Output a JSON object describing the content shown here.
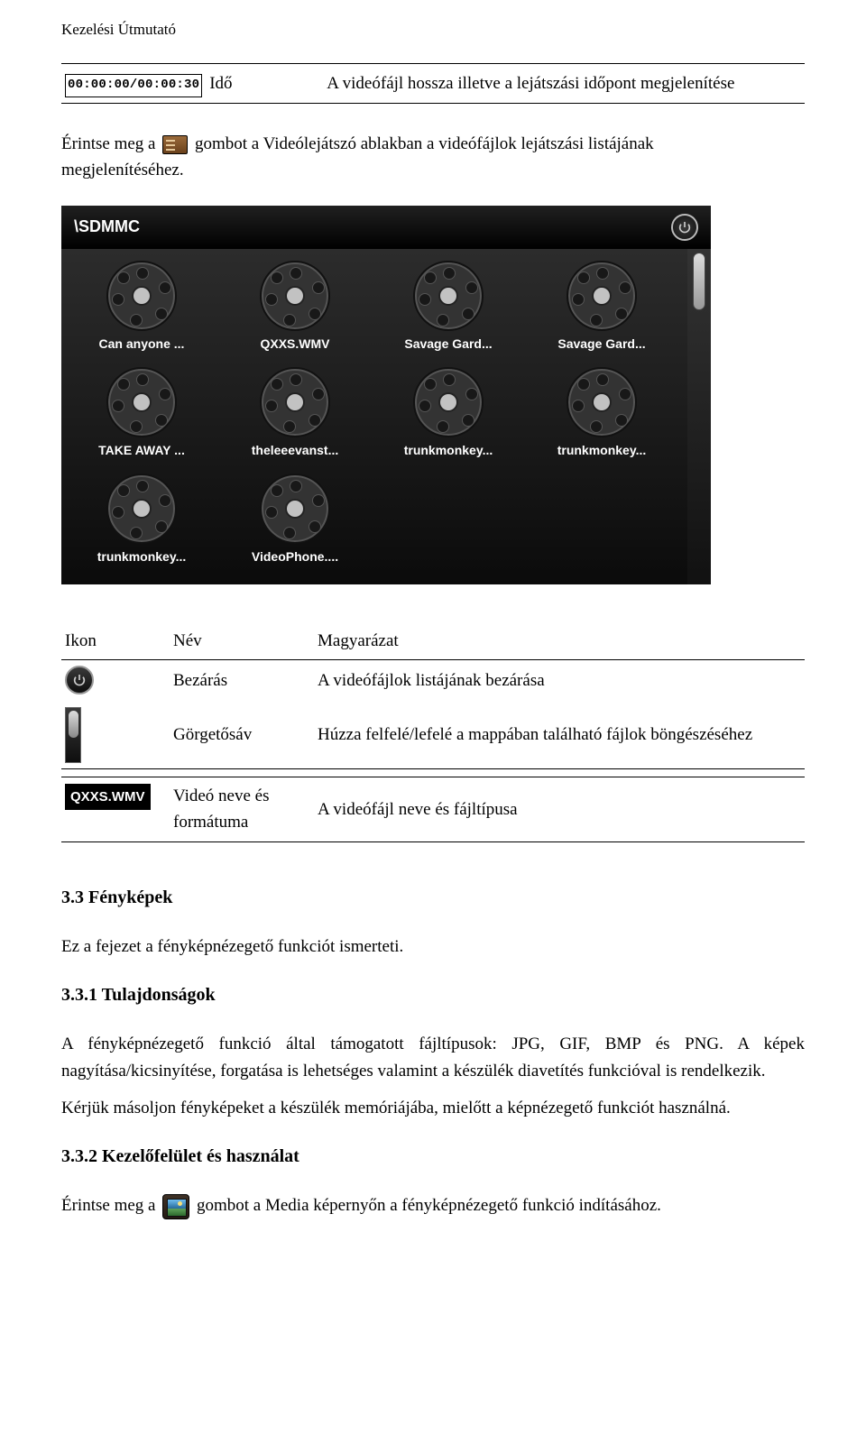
{
  "header": {
    "title": "Kezelési Útmutató"
  },
  "row_time": {
    "time_display": "00:00:00/00:00:30",
    "name": "Idő",
    "desc": "A videófájl hossza illetve a lejátszási időpont megjelenítése"
  },
  "para_list_button": {
    "before_icon": "Érintse meg a",
    "after_icon": "gombot a Videólejátszó ablakban a videófájlok lejátszási listájának",
    "line2": "megjelenítéséhez."
  },
  "media_window": {
    "path": "\\SDMMC",
    "files": [
      "Can anyone ...",
      "QXXS.WMV",
      "Savage Gard...",
      "Savage Gard...",
      "TAKE AWAY ...",
      "theleeevanst...",
      "trunkmonkey...",
      "trunkmonkey...",
      "trunkmonkey...",
      "VideoPhone...."
    ]
  },
  "icon_table": {
    "headers": {
      "icon": "Ikon",
      "name": "Név",
      "desc": "Magyarázat"
    },
    "rows": [
      {
        "name": "Bezárás",
        "desc": "A videófájlok listájának bezárása"
      },
      {
        "name": "Görgetősáv",
        "desc": "Húzza felfelé/lefelé a mappában található fájlok böngészéséhez"
      }
    ],
    "row_filetype": {
      "icon_text": "QXXS.WMV",
      "name_l1": "Videó neve és",
      "name_l2": "formátuma",
      "desc": "A videófájl neve és fájltípusa"
    }
  },
  "sections": {
    "photos_title": "3.3 Fényképek",
    "photos_intro": "Ez a fejezet a fényképnézegető funkciót ismerteti.",
    "props_title": "3.3.1 Tulajdonságok",
    "props_body": "A fényképnézegető funkció által támogatott fájltípusok: JPG, GIF, BMP és PNG. A képek nagyítása/kicsinyítése, forgatása is lehetséges valamint a készülék diavetítés funkcióval is rendelkezik.",
    "props_body2": "Kérjük másoljon fényképeket a készülék memóriájába, mielőtt a képnézegető funkciót használná.",
    "ui_title": "3.3.2 Kezelőfelület és használat",
    "ui_before_icon": "Érintse meg a",
    "ui_after_icon": "gombot a Media képernyőn a fényképnézegető funkció indításához."
  }
}
